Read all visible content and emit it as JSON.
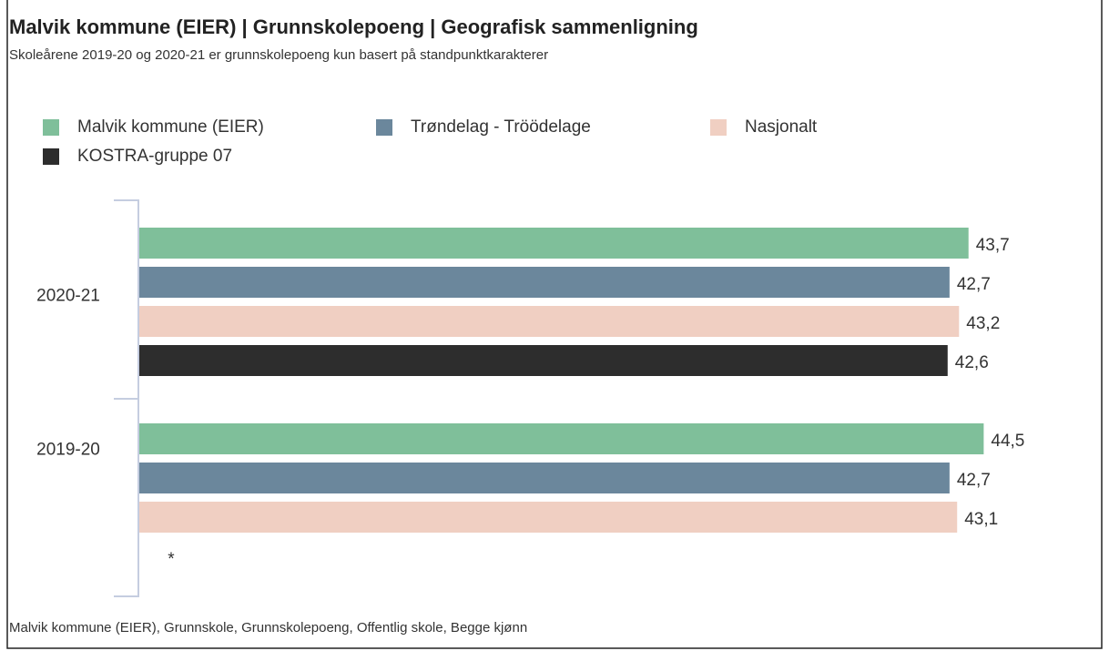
{
  "chart_data": {
    "type": "hbar",
    "title": "Malvik kommune (EIER) | Grunnskolepoeng | Geografisk sammenligning",
    "subtitle": "Skoleårene 2019-20 og 2020-21 er grunnskolepoeng kun basert på standpunktkarakterer",
    "categories": [
      "2020-21",
      "2019-20"
    ],
    "series": [
      {
        "name": "Malvik kommune (EIER)",
        "color": "#7fbf9a",
        "values": [
          43.7,
          44.5
        ],
        "value_labels": [
          "43,7",
          "44,5"
        ]
      },
      {
        "name": "Trøndelag - Tröödelage",
        "color": "#6b879c",
        "values": [
          42.7,
          42.7
        ],
        "value_labels": [
          "42,7",
          "42,7"
        ]
      },
      {
        "name": "Nasjonalt",
        "color": "#f0cfc2",
        "values": [
          43.2,
          43.1
        ],
        "value_labels": [
          "43,2",
          "43,1"
        ]
      },
      {
        "name": "KOSTRA-gruppe 07",
        "color": "#2d2d2d",
        "values": [
          42.6,
          null
        ],
        "value_labels": [
          "42,6",
          null
        ]
      }
    ],
    "missing_note": "*",
    "footer": "Malvik kommune (EIER), Grunnskole, Grunnskolepoeng, Offentlig skole, Begge kjønn"
  }
}
